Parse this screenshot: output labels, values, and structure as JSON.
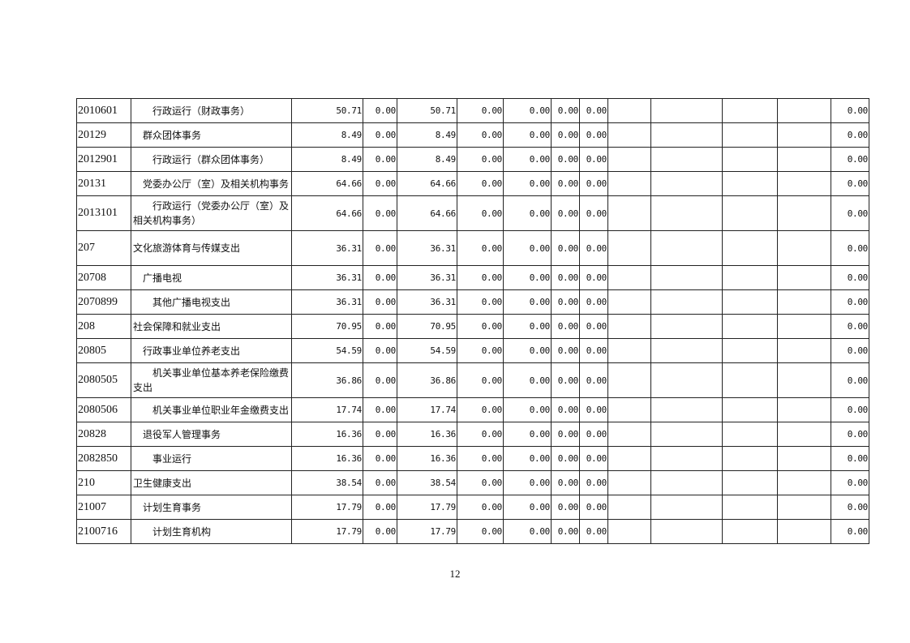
{
  "table": {
    "rows": [
      {
        "code": "2010601",
        "name": "　　行政运行（财政事务）",
        "values": [
          "50.71",
          "0.00",
          "50.71",
          "0.00",
          "0.00",
          "0.00",
          "0.00",
          "",
          "",
          "",
          "",
          "0.00"
        ]
      },
      {
        "code": "20129",
        "name": "　群众团体事务",
        "values": [
          "8.49",
          "0.00",
          "8.49",
          "0.00",
          "0.00",
          "0.00",
          "0.00",
          "",
          "",
          "",
          "",
          "0.00"
        ]
      },
      {
        "code": "2012901",
        "name": "　　行政运行（群众团体事务）",
        "values": [
          "8.49",
          "0.00",
          "8.49",
          "0.00",
          "0.00",
          "0.00",
          "0.00",
          "",
          "",
          "",
          "",
          "0.00"
        ]
      },
      {
        "code": "20131",
        "name": "　党委办公厅（室）及相关机构事务",
        "values": [
          "64.66",
          "0.00",
          "64.66",
          "0.00",
          "0.00",
          "0.00",
          "0.00",
          "",
          "",
          "",
          "",
          "0.00"
        ]
      },
      {
        "code": "2013101",
        "name": "　　行政运行（党委办公厅（室）及相关机构事务）",
        "tall": true,
        "values": [
          "64.66",
          "0.00",
          "64.66",
          "0.00",
          "0.00",
          "0.00",
          "0.00",
          "",
          "",
          "",
          "",
          "0.00"
        ]
      },
      {
        "code": "207",
        "name": "文化旅游体育与传媒支出",
        "tall": true,
        "values": [
          "36.31",
          "0.00",
          "36.31",
          "0.00",
          "0.00",
          "0.00",
          "0.00",
          "",
          "",
          "",
          "",
          "0.00"
        ]
      },
      {
        "code": "20708",
        "name": "　广播电视",
        "values": [
          "36.31",
          "0.00",
          "36.31",
          "0.00",
          "0.00",
          "0.00",
          "0.00",
          "",
          "",
          "",
          "",
          "0.00"
        ]
      },
      {
        "code": "2070899",
        "name": "　　其他广播电视支出",
        "values": [
          "36.31",
          "0.00",
          "36.31",
          "0.00",
          "0.00",
          "0.00",
          "0.00",
          "",
          "",
          "",
          "",
          "0.00"
        ]
      },
      {
        "code": "208",
        "name": "社会保障和就业支出",
        "values": [
          "70.95",
          "0.00",
          "70.95",
          "0.00",
          "0.00",
          "0.00",
          "0.00",
          "",
          "",
          "",
          "",
          "0.00"
        ]
      },
      {
        "code": "20805",
        "name": "　行政事业单位养老支出",
        "values": [
          "54.59",
          "0.00",
          "54.59",
          "0.00",
          "0.00",
          "0.00",
          "0.00",
          "",
          "",
          "",
          "",
          "0.00"
        ]
      },
      {
        "code": "2080505",
        "name": "　　机关事业单位基本养老保险缴费支出",
        "tall": true,
        "values": [
          "36.86",
          "0.00",
          "36.86",
          "0.00",
          "0.00",
          "0.00",
          "0.00",
          "",
          "",
          "",
          "",
          "0.00"
        ]
      },
      {
        "code": "2080506",
        "name": "　　机关事业单位职业年金缴费支出",
        "values": [
          "17.74",
          "0.00",
          "17.74",
          "0.00",
          "0.00",
          "0.00",
          "0.00",
          "",
          "",
          "",
          "",
          "0.00"
        ]
      },
      {
        "code": "20828",
        "name": "　退役军人管理事务",
        "values": [
          "16.36",
          "0.00",
          "16.36",
          "0.00",
          "0.00",
          "0.00",
          "0.00",
          "",
          "",
          "",
          "",
          "0.00"
        ]
      },
      {
        "code": "2082850",
        "name": "　　事业运行",
        "values": [
          "16.36",
          "0.00",
          "16.36",
          "0.00",
          "0.00",
          "0.00",
          "0.00",
          "",
          "",
          "",
          "",
          "0.00"
        ]
      },
      {
        "code": "210",
        "name": "卫生健康支出",
        "values": [
          "38.54",
          "0.00",
          "38.54",
          "0.00",
          "0.00",
          "0.00",
          "0.00",
          "",
          "",
          "",
          "",
          "0.00"
        ]
      },
      {
        "code": "21007",
        "name": "　计划生育事务",
        "values": [
          "17.79",
          "0.00",
          "17.79",
          "0.00",
          "0.00",
          "0.00",
          "0.00",
          "",
          "",
          "",
          "",
          "0.00"
        ]
      },
      {
        "code": "2100716",
        "name": "　　计划生育机构",
        "values": [
          "17.79",
          "0.00",
          "17.79",
          "0.00",
          "0.00",
          "0.00",
          "0.00",
          "",
          "",
          "",
          "",
          "0.00"
        ]
      }
    ]
  },
  "footer": {
    "page_number": "12"
  }
}
